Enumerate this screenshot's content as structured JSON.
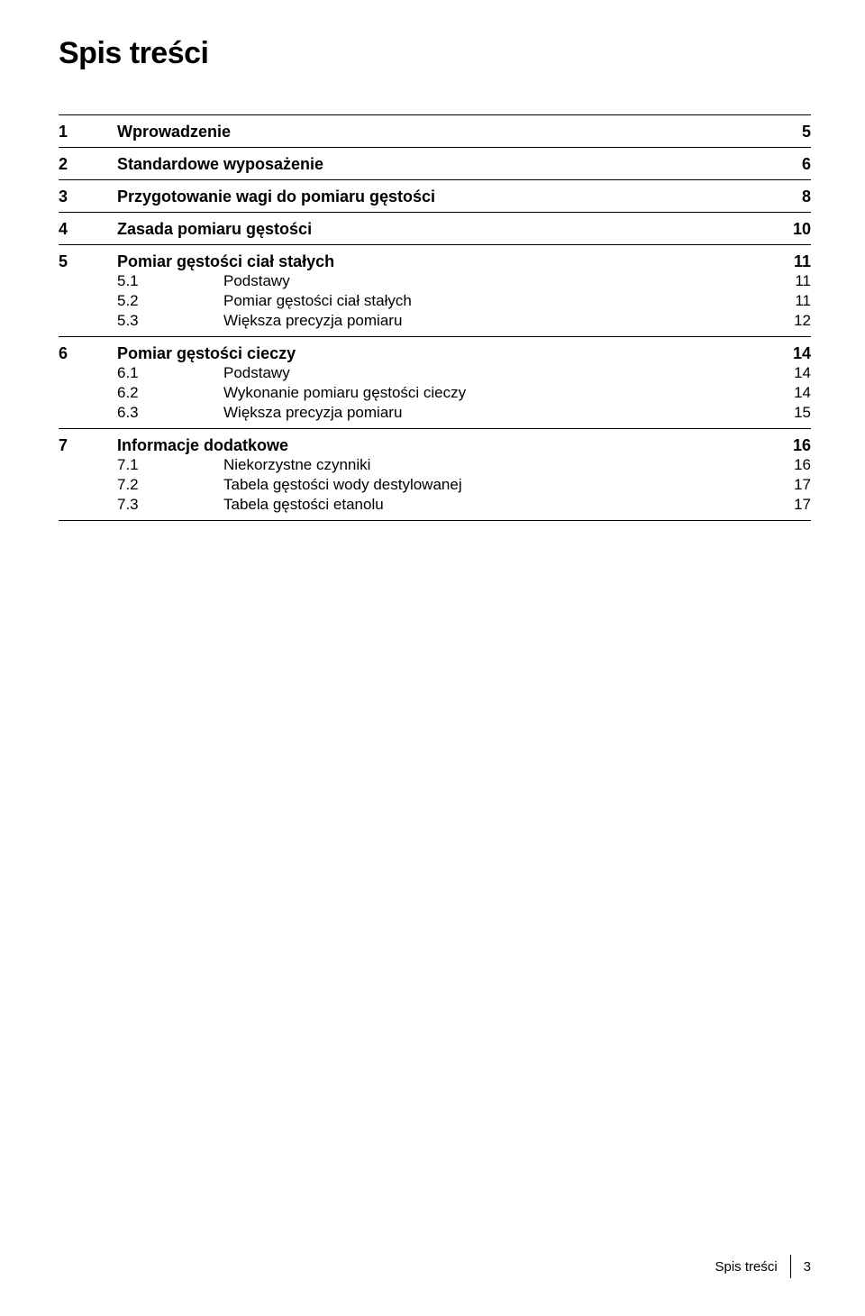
{
  "title": "Spis treści",
  "footer": {
    "label": "Spis treści",
    "page": "3"
  },
  "sections": [
    {
      "num": "1",
      "title": "Wprowadzenie",
      "page": "5",
      "subs": []
    },
    {
      "num": "2",
      "title": "Standardowe wyposażenie",
      "page": "6",
      "subs": []
    },
    {
      "num": "3",
      "title": "Przygotowanie wagi do pomiaru gęstości",
      "page": "8",
      "subs": []
    },
    {
      "num": "4",
      "title": "Zasada pomiaru gęstości",
      "page": "10",
      "subs": []
    },
    {
      "num": "5",
      "title": "Pomiar gęstości ciał stałych",
      "page": "11",
      "subs": [
        {
          "num": "5.1",
          "title": "Podstawy",
          "page": "11"
        },
        {
          "num": "5.2",
          "title": "Pomiar gęstości ciał stałych",
          "page": "11"
        },
        {
          "num": "5.3",
          "title": "Większa precyzja pomiaru",
          "page": "12"
        }
      ]
    },
    {
      "num": "6",
      "title": "Pomiar gęstości cieczy",
      "page": "14",
      "subs": [
        {
          "num": "6.1",
          "title": "Podstawy",
          "page": "14"
        },
        {
          "num": "6.2",
          "title": "Wykonanie pomiaru gęstości cieczy",
          "page": "14"
        },
        {
          "num": "6.3",
          "title": "Większa precyzja pomiaru",
          "page": "15"
        }
      ]
    },
    {
      "num": "7",
      "title": "Informacje dodatkowe",
      "page": "16",
      "subs": [
        {
          "num": "7.1",
          "title": "Niekorzystne czynniki",
          "page": "16"
        },
        {
          "num": "7.2",
          "title": "Tabela gęstości wody destylowanej",
          "page": "17"
        },
        {
          "num": "7.3",
          "title": "Tabela gęstości etanolu",
          "page": "17"
        }
      ]
    }
  ]
}
